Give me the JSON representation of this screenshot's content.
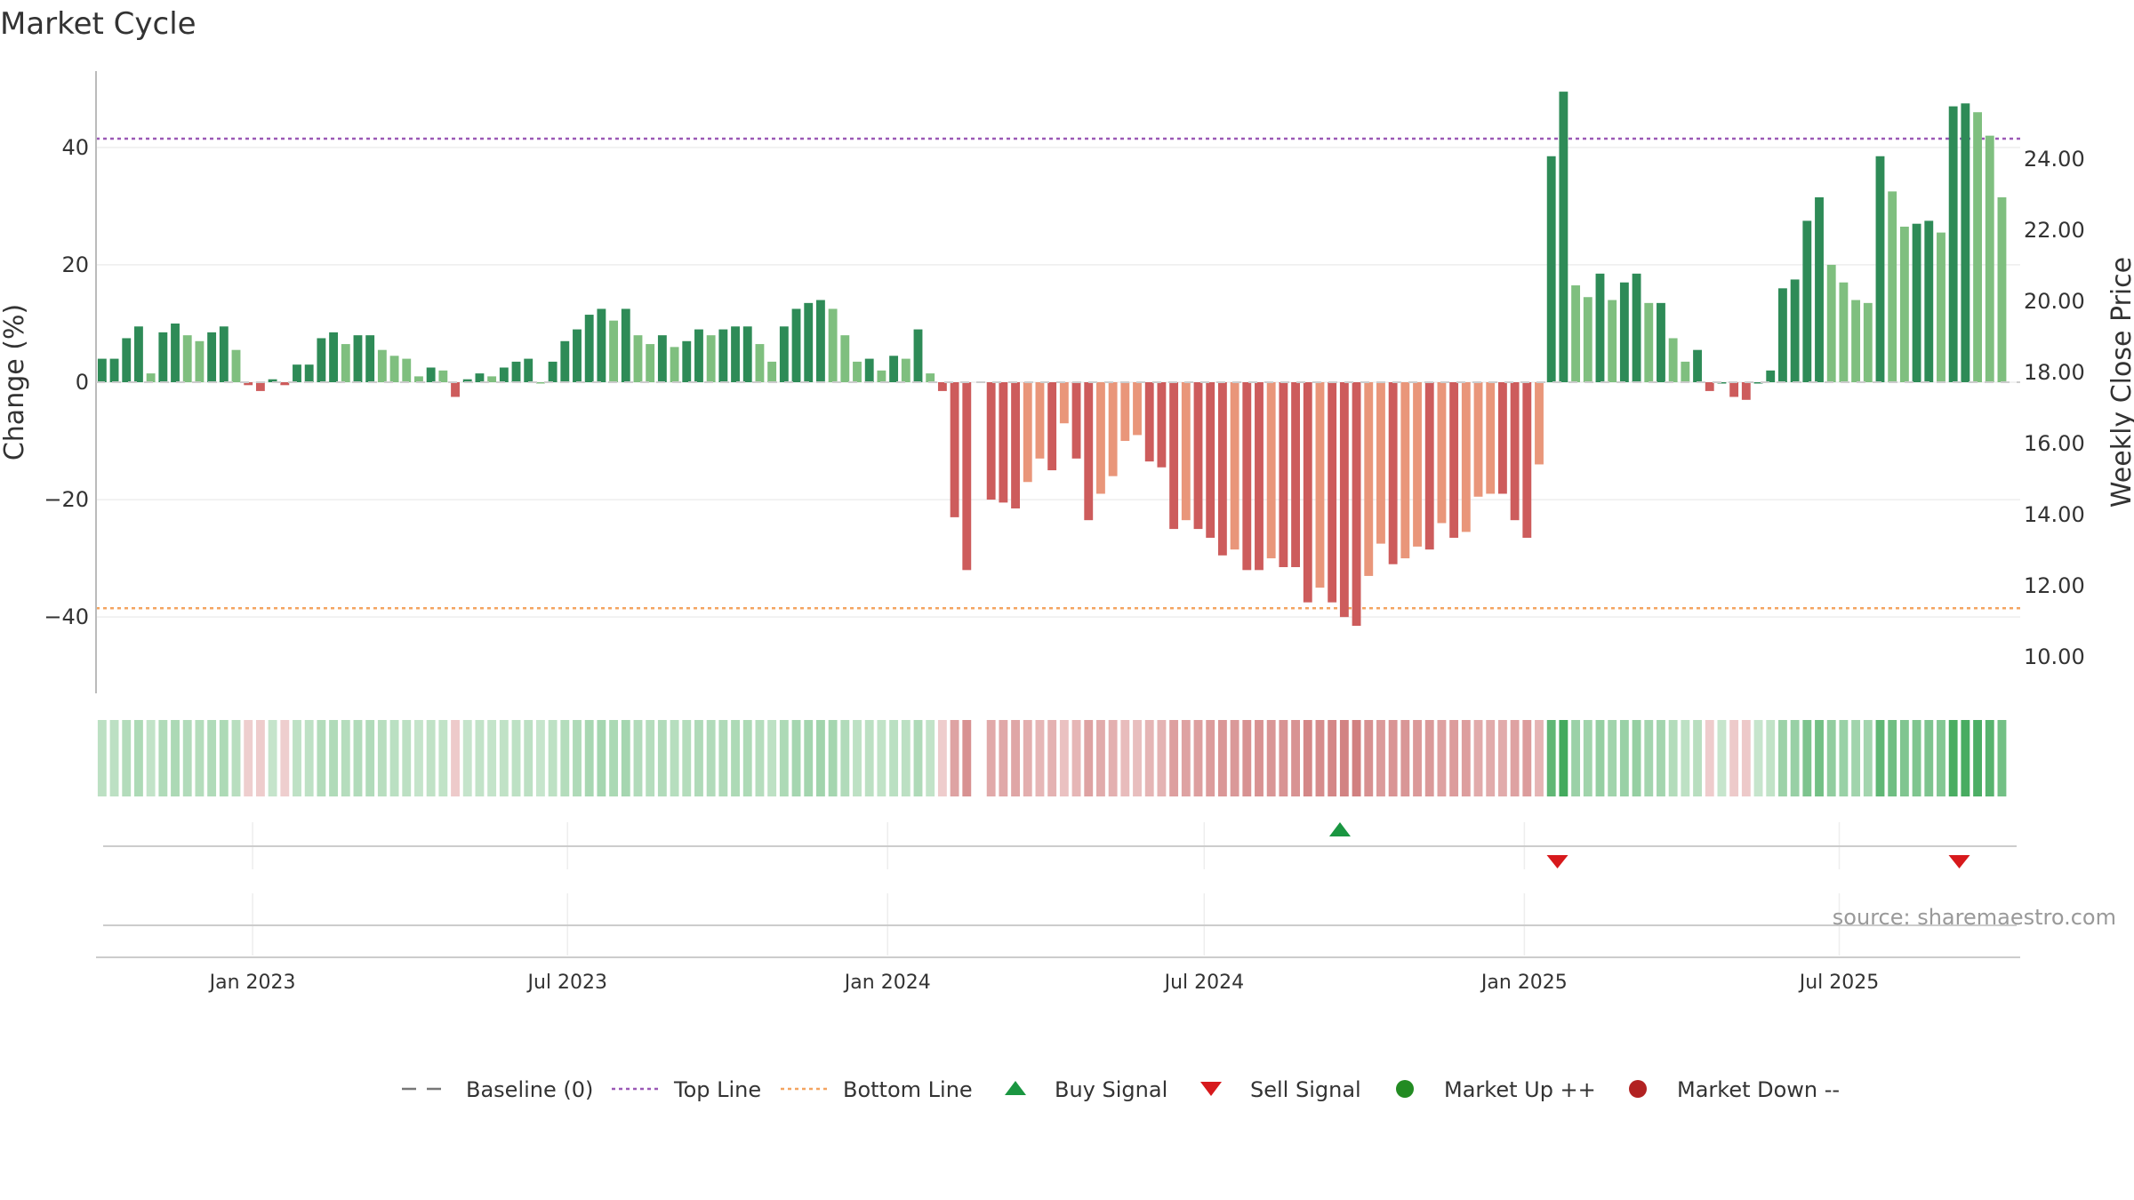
{
  "chart_data": {
    "type": "bar",
    "title": "Market Cycle",
    "ylabel": "Change (%)",
    "y2label": "Weekly Close Price",
    "ylim": [
      -53,
      53
    ],
    "y2lim": [
      8.98,
      26.47
    ],
    "y_ticks": [
      "40",
      "20",
      "0",
      "−20",
      "−40"
    ],
    "y_tick_values": [
      40,
      20,
      0,
      -20,
      -40
    ],
    "y2_ticks": [
      "24.00",
      "22.00",
      "20.00",
      "18.00",
      "16.00",
      "14.00",
      "12.00",
      "10.00"
    ],
    "y2_tick_values": [
      24,
      22,
      20,
      18,
      16,
      14,
      12,
      10
    ],
    "x_start": "2022-10-03",
    "x_end": "2025-10-13",
    "x_ticks": [
      {
        "label": "Jan 2023",
        "date": "2023-01-01"
      },
      {
        "label": "Jul 2023",
        "date": "2023-07-01"
      },
      {
        "label": "Jan 2024",
        "date": "2024-01-01"
      },
      {
        "label": "Jul 2024",
        "date": "2024-07-01"
      },
      {
        "label": "Jan 2025",
        "date": "2025-01-01"
      },
      {
        "label": "Jul 2025",
        "date": "2025-07-01"
      }
    ],
    "first_week": "2022-10-03",
    "values": [
      4,
      4,
      7.5,
      9.5,
      1.5,
      8.5,
      10,
      8,
      7,
      8.5,
      9.5,
      5.5,
      -0.5,
      -1.5,
      0.5,
      -0.5,
      3,
      3,
      7.5,
      8.5,
      6.5,
      8,
      8,
      5.5,
      4.5,
      4,
      1,
      2.5,
      2,
      -2.5,
      0.5,
      1.5,
      1,
      2.5,
      3.5,
      4,
      0,
      3.5,
      7,
      9,
      11.5,
      12.5,
      10.5,
      12.5,
      8,
      6.5,
      8,
      6,
      7,
      9,
      8,
      9,
      9.5,
      9.5,
      6.5,
      3.5,
      9.5,
      12.5,
      13.5,
      14,
      12.5,
      8,
      3.5,
      4,
      2,
      4.5,
      4,
      9,
      1.5,
      -1.5,
      -23,
      -32,
      0,
      -20,
      -20.5,
      -21.5,
      -17,
      -13,
      -15,
      -7,
      -13,
      -23.5,
      -19,
      -16,
      -10,
      -9,
      -13.5,
      -14.5,
      -25,
      -23.5,
      -25,
      -26.5,
      -29.5,
      -28.5,
      -32,
      -32,
      -30,
      -31.5,
      -31.5,
      -37.5,
      -35,
      -37.5,
      -40,
      -41.5,
      -33,
      -27.5,
      -31,
      -30,
      -28,
      -28.5,
      -24,
      -26.5,
      -25.5,
      -19.5,
      -19,
      -19,
      -23.5,
      -26.5,
      -14,
      38.5,
      49.5,
      16.5,
      14.5,
      18.5,
      14,
      17,
      18.5,
      13.5,
      13.5,
      7.5,
      3.5,
      5.5,
      -1.5,
      0,
      -2.5,
      -3,
      0,
      2,
      16,
      17.5,
      27.5,
      31.5,
      20,
      17,
      14,
      13.5,
      38.5,
      32.5,
      26.5,
      27,
      27.5,
      25.5,
      47,
      47.5,
      46,
      42,
      31.5
    ],
    "gaps": [
      72
    ],
    "markers": [
      {
        "type": "buy",
        "date": "2024-09-17",
        "label": "Buy Signal"
      },
      {
        "type": "sell",
        "date": "2025-01-20",
        "label": "Sell Signal"
      },
      {
        "type": "sell",
        "date": "2025-09-08",
        "label": "Sell Signal"
      }
    ],
    "reference_lines": [
      {
        "name": "Top Line",
        "value": 41.5,
        "color": "#9b59b6",
        "style": "dotted"
      },
      {
        "name": "Bottom Line",
        "value": -38.5,
        "color": "#f4a460",
        "style": "dotted"
      },
      {
        "name": "Baseline (0)",
        "value": 0,
        "color": "#777777",
        "style": "dashed"
      }
    ],
    "colors": {
      "up_strong": "#2e8b57",
      "up_light": "#7fbf7f",
      "down_strong": "#cd5c5c",
      "down_light": "#e9967a",
      "buy": "#1a9641",
      "sell": "#d7191c",
      "market_up": "#228b22",
      "market_down": "#b22222",
      "grid": "#eeeeee"
    },
    "legend": [
      {
        "key": "baseline",
        "label": "Baseline (0)"
      },
      {
        "key": "top",
        "label": "Top Line"
      },
      {
        "key": "bottom",
        "label": "Bottom Line"
      },
      {
        "key": "buy",
        "label": "Buy Signal"
      },
      {
        "key": "sell",
        "label": "Sell Signal"
      },
      {
        "key": "up",
        "label": "Market Up ++"
      },
      {
        "key": "down",
        "label": "Market Down --"
      }
    ],
    "legend_position": "bottom-center",
    "grid": true
  },
  "source": "source: sharemaestro.com"
}
